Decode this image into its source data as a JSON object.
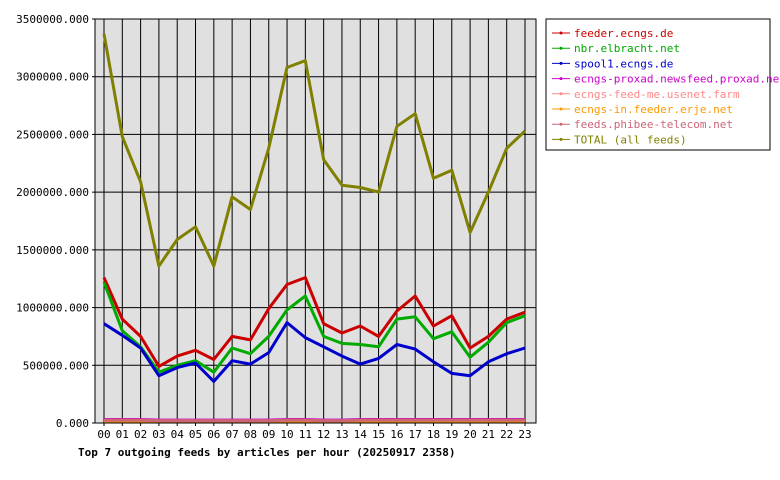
{
  "chart_data": {
    "type": "line",
    "title": "Top 7 outgoing feeds by articles per hour (20250917 2358)",
    "xlabel": "",
    "ylabel": "",
    "x": [
      "00",
      "01",
      "02",
      "03",
      "04",
      "05",
      "06",
      "07",
      "08",
      "09",
      "10",
      "11",
      "12",
      "13",
      "14",
      "15",
      "16",
      "17",
      "18",
      "19",
      "20",
      "21",
      "22",
      "23"
    ],
    "y_ticks": [
      "0.000",
      "500000.000",
      "1000000.000",
      "1500000.000",
      "2000000.000",
      "2500000.000",
      "3000000.000",
      "3500000.000"
    ],
    "ylim": [
      0,
      3500000
    ],
    "grid": true,
    "legend_position": "right",
    "series": [
      {
        "name": "feeder.ecngs.de",
        "color": "#cc0000",
        "values": [
          1260000,
          900000,
          750000,
          490000,
          580000,
          630000,
          550000,
          750000,
          720000,
          990000,
          1200000,
          1260000,
          860000,
          780000,
          840000,
          750000,
          970000,
          1100000,
          840000,
          930000,
          650000,
          750000,
          900000,
          960000
        ]
      },
      {
        "name": "nbr.elbracht.net",
        "color": "#00aa00",
        "values": [
          1220000,
          800000,
          660000,
          440000,
          500000,
          540000,
          440000,
          650000,
          600000,
          750000,
          980000,
          1100000,
          750000,
          690000,
          680000,
          660000,
          900000,
          920000,
          730000,
          790000,
          570000,
          700000,
          870000,
          930000
        ]
      },
      {
        "name": "spool1.ecngs.de",
        "color": "#0000cc",
        "values": [
          860000,
          760000,
          650000,
          410000,
          480000,
          520000,
          360000,
          540000,
          510000,
          610000,
          870000,
          740000,
          660000,
          580000,
          510000,
          560000,
          680000,
          640000,
          530000,
          430000,
          410000,
          530000,
          600000,
          650000
        ]
      },
      {
        "name": "ecngs-proxad.newsfeed.proxad.net",
        "color": "#cc00cc",
        "values": [
          30000,
          30000,
          30000,
          25000,
          25000,
          25000,
          25000,
          25000,
          25000,
          25000,
          30000,
          30000,
          25000,
          25000,
          30000,
          30000,
          30000,
          30000,
          30000,
          30000,
          30000,
          30000,
          30000,
          30000
        ]
      },
      {
        "name": "ecngs-feed-me.usenet.farm",
        "color": "#ff8888",
        "values": [
          20000,
          20000,
          20000,
          18000,
          18000,
          18000,
          18000,
          18000,
          18000,
          18000,
          20000,
          20000,
          18000,
          18000,
          20000,
          20000,
          20000,
          20000,
          20000,
          20000,
          20000,
          20000,
          20000,
          20000
        ]
      },
      {
        "name": "ecngs-in.feeder.erje.net",
        "color": "#ff9900",
        "values": [
          15000,
          15000,
          15000,
          12000,
          12000,
          12000,
          12000,
          12000,
          12000,
          12000,
          15000,
          15000,
          12000,
          12000,
          15000,
          15000,
          15000,
          15000,
          15000,
          15000,
          15000,
          15000,
          15000,
          15000
        ]
      },
      {
        "name": "feeds.phibee-telecom.net",
        "color": "#cc6677",
        "values": [
          25000,
          25000,
          25000,
          20000,
          20000,
          20000,
          20000,
          20000,
          20000,
          20000,
          25000,
          25000,
          20000,
          20000,
          25000,
          25000,
          25000,
          25000,
          25000,
          25000,
          25000,
          25000,
          25000,
          25000
        ]
      },
      {
        "name": "TOTAL (all feeds)",
        "color": "#808000",
        "values": [
          3370000,
          2480000,
          2090000,
          1360000,
          1590000,
          1700000,
          1360000,
          1960000,
          1850000,
          2380000,
          3080000,
          3140000,
          2280000,
          2060000,
          2040000,
          2000000,
          2570000,
          2680000,
          2120000,
          2190000,
          1650000,
          2000000,
          2380000,
          2530000
        ]
      }
    ]
  }
}
